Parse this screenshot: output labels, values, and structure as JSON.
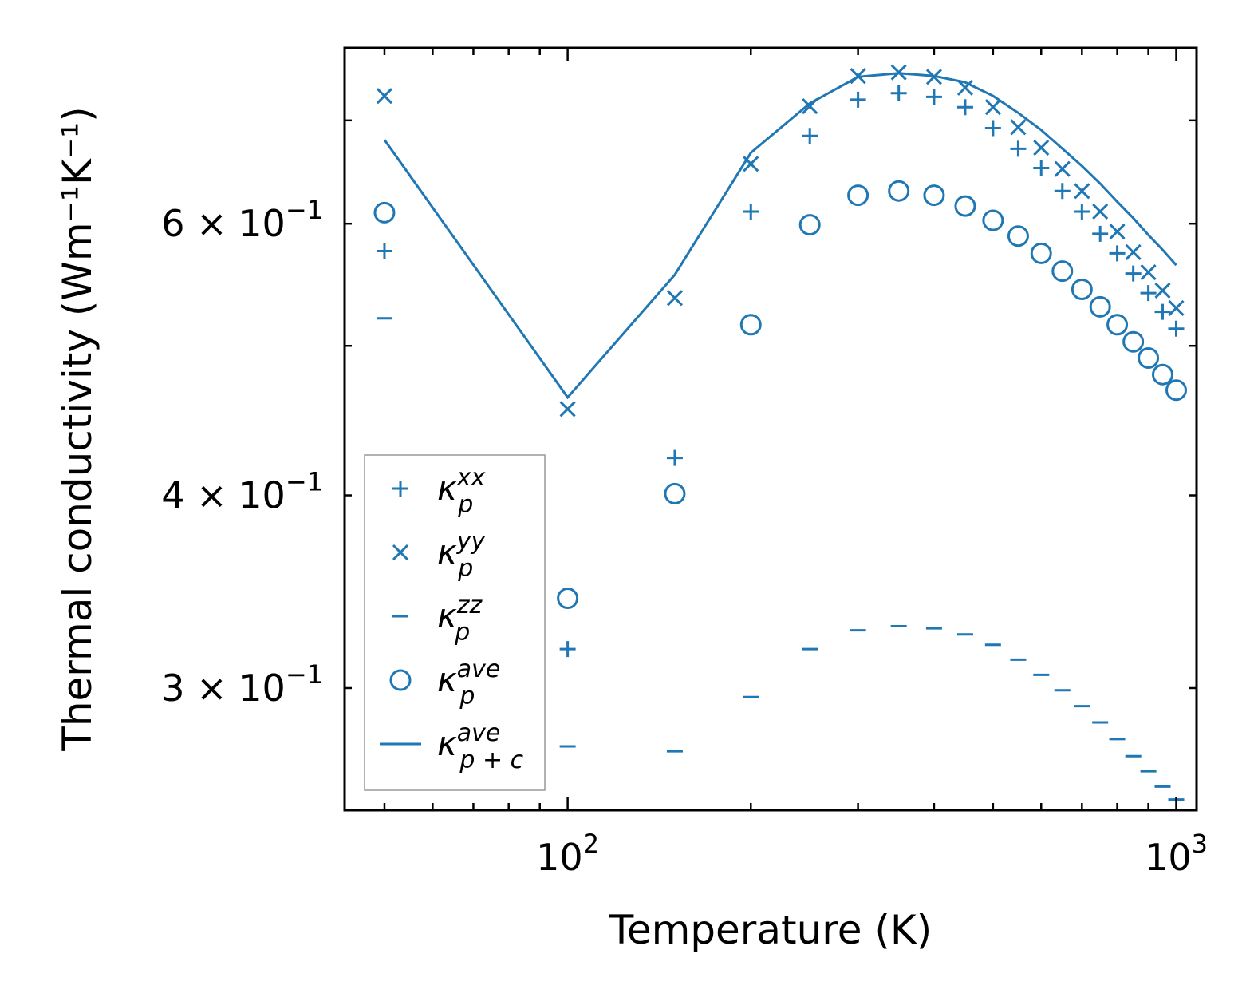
{
  "chart_data": {
    "type": "scatter",
    "x_scale": "log",
    "y_scale": "log",
    "xlabel": "Temperature (K)",
    "ylabel": "Thermal conductivity (Wm⁻¹K⁻¹)",
    "xlim": [
      43,
      1080
    ],
    "ylim": [
      0.25,
      0.78
    ],
    "x_ticks": [
      {
        "value": 100,
        "base": "10",
        "exp": "2"
      },
      {
        "value": 1000,
        "base": "10",
        "exp": "3"
      }
    ],
    "y_ticks": [
      {
        "value": 0.3,
        "mant": "3",
        "base": "× 10",
        "exp": "−1"
      },
      {
        "value": 0.4,
        "mant": "4",
        "base": "× 10",
        "exp": "−1"
      },
      {
        "value": 0.6,
        "mant": "6",
        "base": "× 10",
        "exp": "−1"
      }
    ],
    "color": "#1f77b4",
    "x": [
      50,
      100,
      150,
      200,
      250,
      300,
      350,
      400,
      450,
      500,
      550,
      600,
      650,
      700,
      750,
      800,
      850,
      900,
      950,
      1000
    ],
    "series": [
      {
        "name": "kxx",
        "marker": "plus",
        "legend_main": "κ",
        "legend_sub": "p",
        "legend_sup": "xx",
        "values": [
          0.576,
          0.318,
          0.423,
          0.611,
          0.684,
          0.722,
          0.729,
          0.725,
          0.714,
          0.692,
          0.671,
          0.652,
          0.63,
          0.611,
          0.591,
          0.574,
          0.557,
          0.541,
          0.526,
          0.513
        ]
      },
      {
        "name": "kyy",
        "marker": "x",
        "legend_main": "κ",
        "legend_sub": "p",
        "legend_sup": "yy",
        "values": [
          0.726,
          0.455,
          0.537,
          0.656,
          0.715,
          0.748,
          0.752,
          0.747,
          0.735,
          0.714,
          0.693,
          0.672,
          0.651,
          0.63,
          0.611,
          0.593,
          0.575,
          0.558,
          0.543,
          0.529
        ]
      },
      {
        "name": "kzz",
        "marker": "dash",
        "legend_main": "κ",
        "legend_sub": "p",
        "legend_sup": "zz",
        "values": [
          0.521,
          0.275,
          0.273,
          0.296,
          0.318,
          0.327,
          0.329,
          0.328,
          0.325,
          0.32,
          0.313,
          0.306,
          0.299,
          0.292,
          0.285,
          0.278,
          0.271,
          0.265,
          0.259,
          0.254
        ]
      },
      {
        "name": "kave",
        "marker": "circle",
        "legend_main": "κ",
        "legend_sub": "p",
        "legend_sup": "ave",
        "values": [
          0.61,
          0.343,
          0.401,
          0.516,
          0.599,
          0.626,
          0.63,
          0.626,
          0.616,
          0.603,
          0.589,
          0.574,
          0.559,
          0.544,
          0.53,
          0.516,
          0.503,
          0.491,
          0.479,
          0.468
        ]
      },
      {
        "name": "kave_pc",
        "marker": "line",
        "legend_main": "κ",
        "legend_sub": "p + c",
        "legend_sup": "ave",
        "values": [
          0.68,
          0.463,
          0.556,
          0.667,
          0.718,
          0.747,
          0.751,
          0.748,
          0.741,
          0.726,
          0.708,
          0.69,
          0.671,
          0.654,
          0.637,
          0.62,
          0.605,
          0.59,
          0.577,
          0.564
        ]
      }
    ]
  }
}
